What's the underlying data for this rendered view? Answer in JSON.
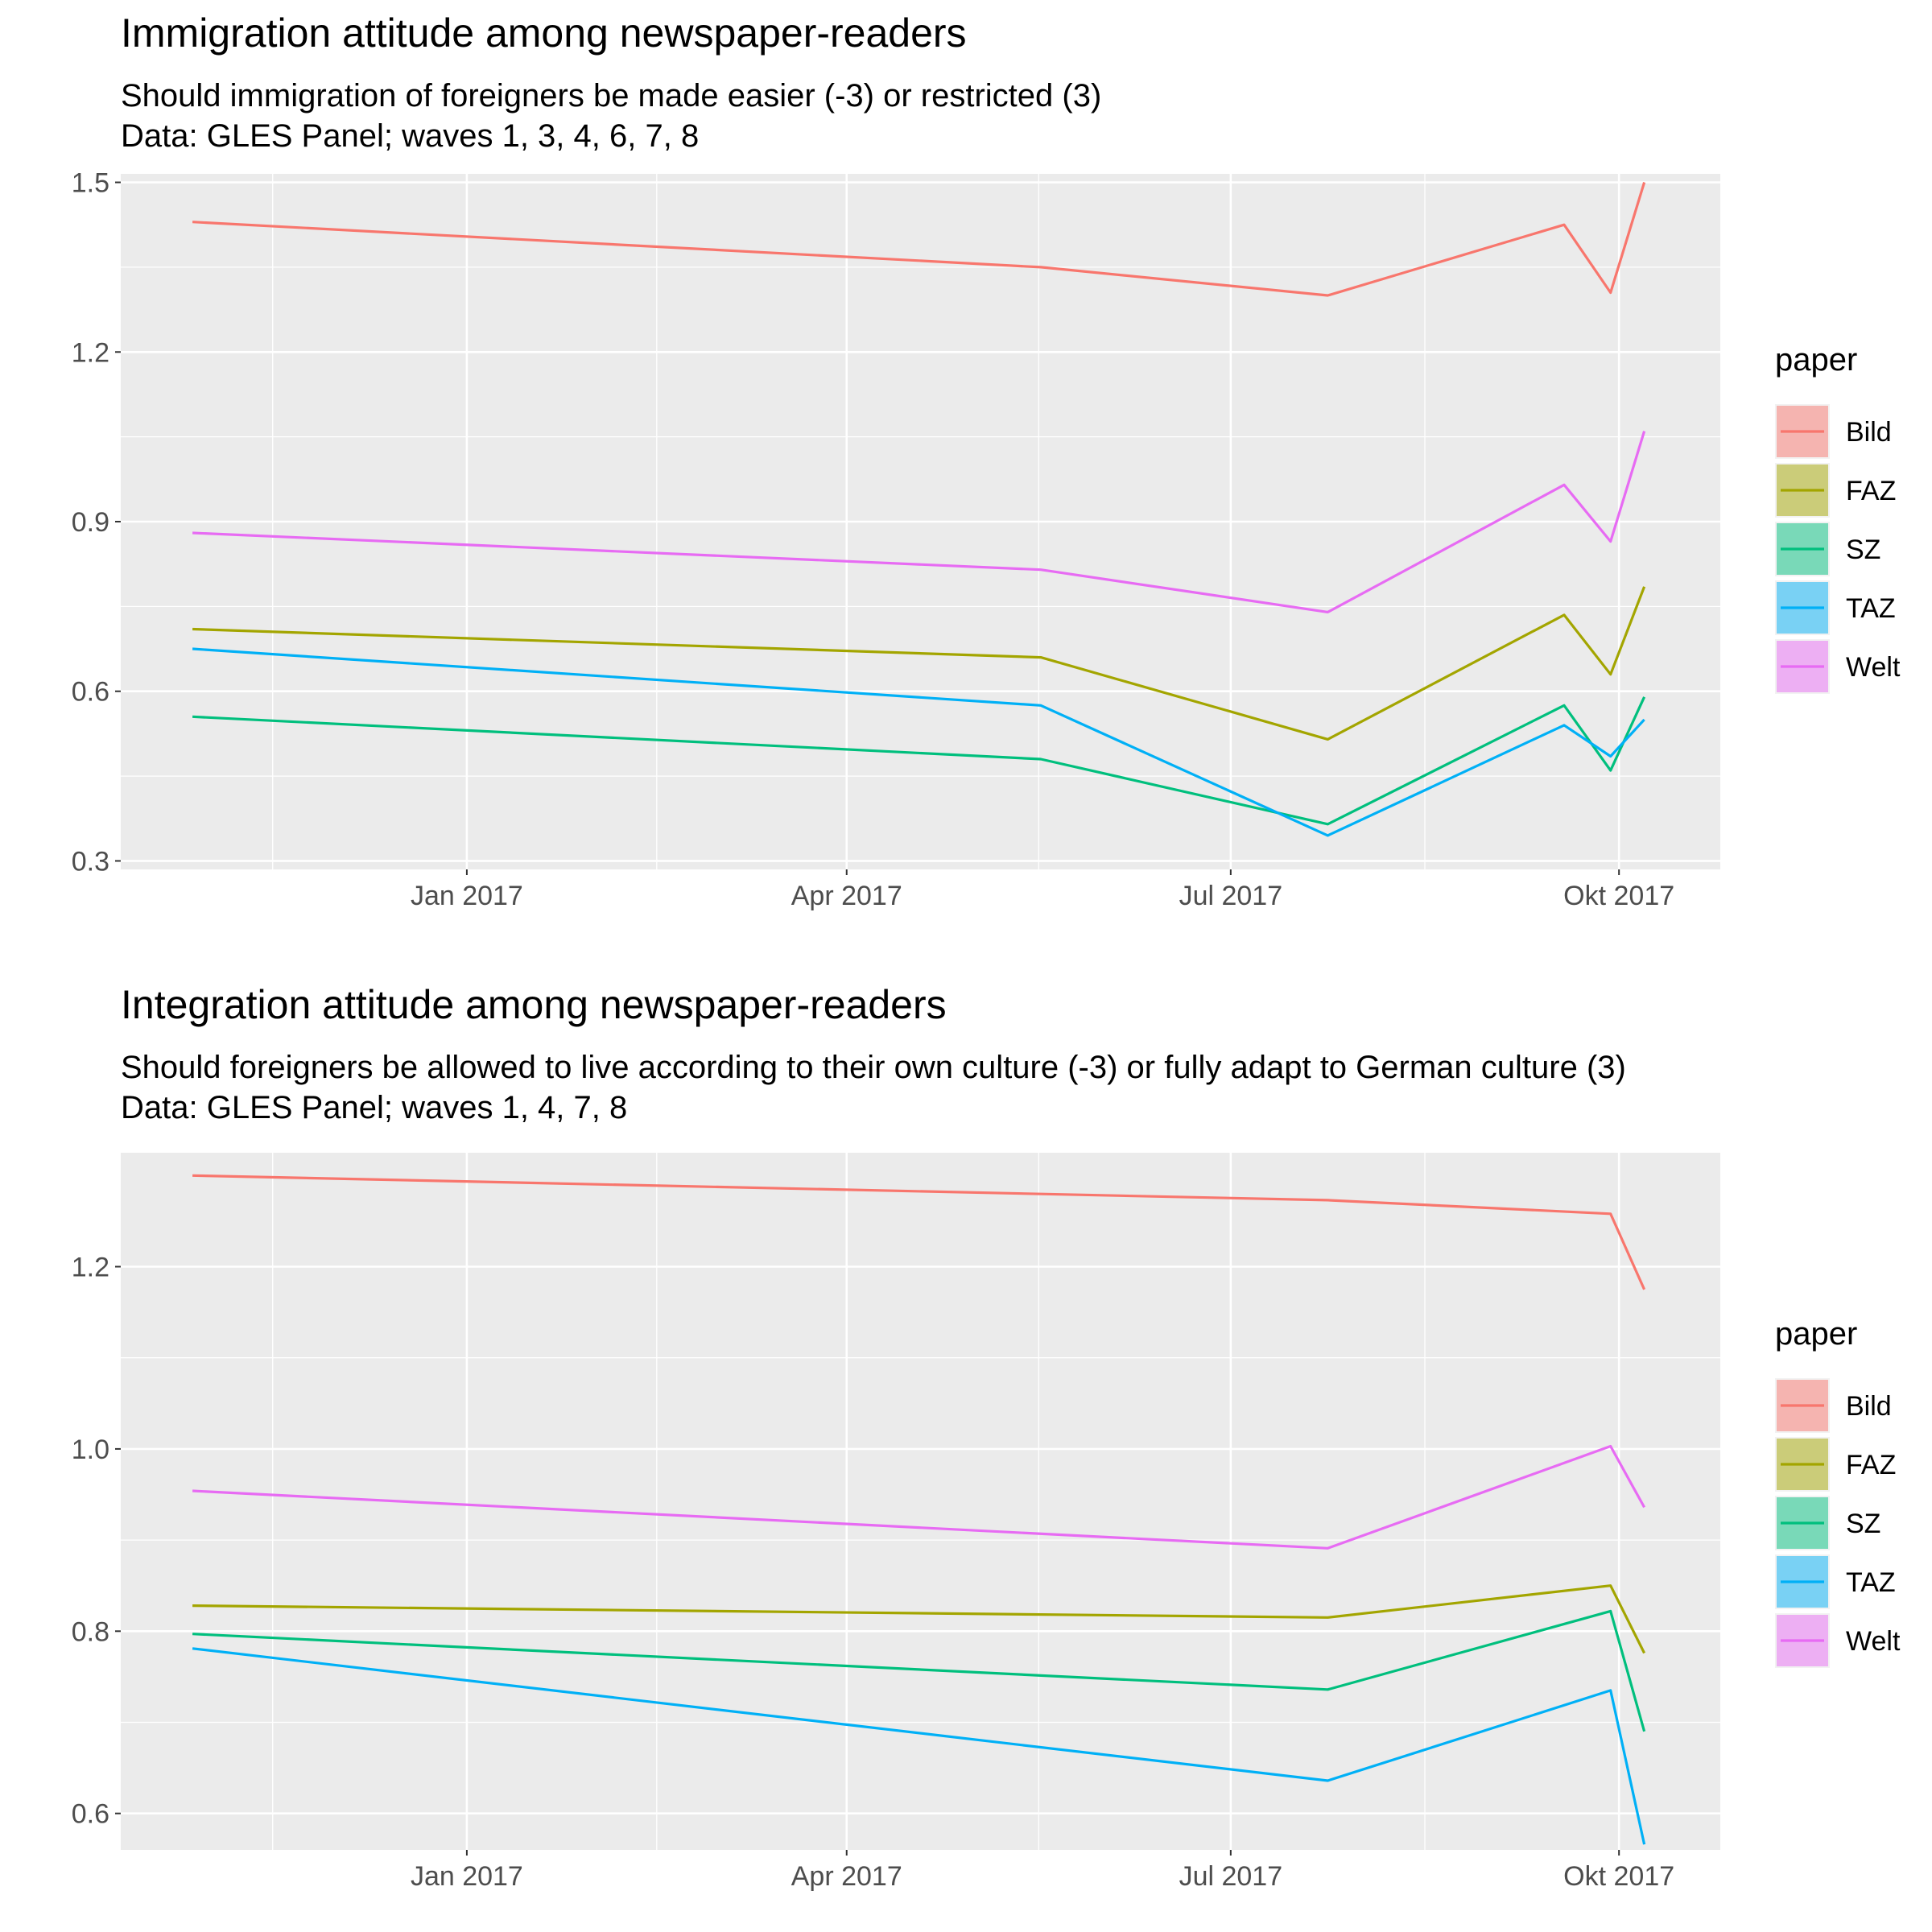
{
  "chart_data": [
    {
      "type": "line",
      "title": "Immigration attitude among newspaper-readers",
      "subtitle": [
        "Should immigration of foreigners be made easier (-3) or restricted (3)",
        "Data: GLES Panel; waves 1, 3, 4, 6, 7, 8"
      ],
      "xlabel": "",
      "ylabel": "",
      "x_ticks": [
        {
          "label": "Jan 2017",
          "date": "2017-01-01"
        },
        {
          "label": "Apr 2017",
          "date": "2017-04-01"
        },
        {
          "label": "Jul 2017",
          "date": "2017-07-01"
        },
        {
          "label": "Okt 2017",
          "date": "2017-10-01"
        }
      ],
      "xlim": [
        "2016-10-11",
        "2017-10-25"
      ],
      "y_ticks": [
        0.3,
        0.6,
        0.9,
        1.2,
        1.5
      ],
      "ylim": [
        0.285,
        1.515
      ],
      "grid": true,
      "legend": {
        "title": "paper",
        "position": "right"
      },
      "x": [
        "2016-10-28",
        "2017-05-17",
        "2017-07-24",
        "2017-09-18",
        "2017-09-29",
        "2017-10-07"
      ],
      "series": [
        {
          "name": "Bild",
          "color": "#F8766D",
          "values": [
            1.43,
            1.35,
            1.3,
            1.425,
            1.305,
            1.5
          ]
        },
        {
          "name": "FAZ",
          "color": "#A3A500",
          "values": [
            0.71,
            0.66,
            0.515,
            0.735,
            0.63,
            0.785
          ]
        },
        {
          "name": "SZ",
          "color": "#00BF7D",
          "values": [
            0.555,
            0.48,
            0.365,
            0.575,
            0.46,
            0.59
          ]
        },
        {
          "name": "TAZ",
          "color": "#00B0F6",
          "values": [
            0.675,
            0.575,
            0.345,
            0.54,
            0.485,
            0.55
          ]
        },
        {
          "name": "Welt",
          "color": "#E76BF3",
          "values": [
            0.88,
            0.815,
            0.74,
            0.965,
            0.865,
            1.06
          ]
        }
      ]
    },
    {
      "type": "line",
      "title": "Integration attitude among newspaper-readers",
      "subtitle": [
        "Should foreigners be allowed to live according to their own culture (-3) or fully adapt to German culture (3)",
        "Data: GLES Panel; waves 1, 4, 7, 8"
      ],
      "xlabel": "",
      "ylabel": "",
      "x_ticks": [
        {
          "label": "Jan 2017",
          "date": "2017-01-01"
        },
        {
          "label": "Apr 2017",
          "date": "2017-04-01"
        },
        {
          "label": "Jul 2017",
          "date": "2017-07-01"
        },
        {
          "label": "Okt 2017",
          "date": "2017-10-01"
        }
      ],
      "xlim": [
        "2016-10-11",
        "2017-10-25"
      ],
      "y_ticks": [
        0.6,
        0.8,
        1.0,
        1.2
      ],
      "ylim": [
        0.56,
        1.325
      ],
      "grid": true,
      "legend": {
        "title": "paper",
        "position": "right"
      },
      "x": [
        "2016-10-28",
        "2017-07-24",
        "2017-09-29",
        "2017-10-07"
      ],
      "series": [
        {
          "name": "Bild",
          "color": "#F8766D",
          "values": [
            1.3,
            1.273,
            1.258,
            1.175
          ]
        },
        {
          "name": "FAZ",
          "color": "#A3A500",
          "values": [
            0.828,
            0.815,
            0.85,
            0.776
          ]
        },
        {
          "name": "SZ",
          "color": "#00BF7D",
          "values": [
            0.797,
            0.736,
            0.822,
            0.69
          ]
        },
        {
          "name": "TAZ",
          "color": "#00B0F6",
          "values": [
            0.781,
            0.636,
            0.735,
            0.566
          ]
        },
        {
          "name": "Welt",
          "color": "#E76BF3",
          "values": [
            0.954,
            0.891,
            1.003,
            0.936
          ]
        }
      ]
    }
  ]
}
